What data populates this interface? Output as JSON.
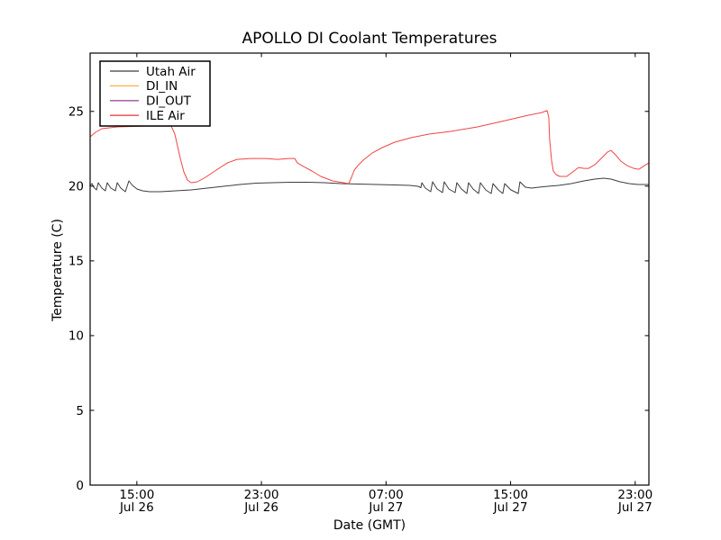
{
  "figure": {
    "background": "#ffffff",
    "spine_color": "#000000"
  },
  "chart_data": {
    "type": "line",
    "title": "APOLLO DI Coolant Temperatures",
    "xlabel": "Date (GMT)",
    "ylabel": "Temperature (C)",
    "grid": false,
    "legend_position": "upper left",
    "x_unit_note": "hours since Jul 26 12:00 GMT",
    "xlim": [
      0,
      35.88
    ],
    "ylim": [
      0,
      28.9
    ],
    "y_ticks": [
      0,
      5,
      10,
      15,
      20,
      25
    ],
    "x_ticks": [
      {
        "t": 3,
        "time": "15:00",
        "date": "Jul 26"
      },
      {
        "t": 11,
        "time": "23:00",
        "date": "Jul 26"
      },
      {
        "t": 19,
        "time": "07:00",
        "date": "Jul 27"
      },
      {
        "t": 27,
        "time": "15:00",
        "date": "Jul 27"
      },
      {
        "t": 35,
        "time": "23:00",
        "date": "Jul 27"
      }
    ],
    "series": [
      {
        "name": "Utah Air",
        "color": "#3c3c3c",
        "points": [
          [
            0,
            20.05
          ],
          [
            0.12,
            20.17
          ],
          [
            0.23,
            19.93
          ],
          [
            0.41,
            19.75
          ],
          [
            0.52,
            20.23
          ],
          [
            0.75,
            19.87
          ],
          [
            0.98,
            19.69
          ],
          [
            1.1,
            20.23
          ],
          [
            1.33,
            19.87
          ],
          [
            1.62,
            19.69
          ],
          [
            1.74,
            20.23
          ],
          [
            1.97,
            19.87
          ],
          [
            2.26,
            19.63
          ],
          [
            2.49,
            20.35
          ],
          [
            2.72,
            20.05
          ],
          [
            3.01,
            19.81
          ],
          [
            3.36,
            19.69
          ],
          [
            3.82,
            19.63
          ],
          [
            4.51,
            19.63
          ],
          [
            5.5,
            19.69
          ],
          [
            6.48,
            19.75
          ],
          [
            7.52,
            19.87
          ],
          [
            8.56,
            19.99
          ],
          [
            9.61,
            20.11
          ],
          [
            10.65,
            20.2
          ],
          [
            11.69,
            20.23
          ],
          [
            12.85,
            20.26
          ],
          [
            14.0,
            20.26
          ],
          [
            15.05,
            20.23
          ],
          [
            16.09,
            20.17
          ],
          [
            17.24,
            20.14
          ],
          [
            18.4,
            20.11
          ],
          [
            19.56,
            20.08
          ],
          [
            20.54,
            20.05
          ],
          [
            21.06,
            19.99
          ],
          [
            21.24,
            19.9
          ],
          [
            21.3,
            20.23
          ],
          [
            21.53,
            19.87
          ],
          [
            21.87,
            19.63
          ],
          [
            21.99,
            20.29
          ],
          [
            22.28,
            19.81
          ],
          [
            22.63,
            19.57
          ],
          [
            22.74,
            20.29
          ],
          [
            23.03,
            19.81
          ],
          [
            23.44,
            19.57
          ],
          [
            23.55,
            20.23
          ],
          [
            23.84,
            19.81
          ],
          [
            24.19,
            19.51
          ],
          [
            24.3,
            20.23
          ],
          [
            24.59,
            19.81
          ],
          [
            24.94,
            19.51
          ],
          [
            25.06,
            20.23
          ],
          [
            25.4,
            19.75
          ],
          [
            25.75,
            19.51
          ],
          [
            25.87,
            20.17
          ],
          [
            26.21,
            19.75
          ],
          [
            26.5,
            19.51
          ],
          [
            26.62,
            20.17
          ],
          [
            27.02,
            19.75
          ],
          [
            27.49,
            19.51
          ],
          [
            27.6,
            20.29
          ],
          [
            27.95,
            19.93
          ],
          [
            28.35,
            19.87
          ],
          [
            28.82,
            19.93
          ],
          [
            29.39,
            19.99
          ],
          [
            30.09,
            20.05
          ],
          [
            30.9,
            20.17
          ],
          [
            31.71,
            20.35
          ],
          [
            32.4,
            20.47
          ],
          [
            32.98,
            20.53
          ],
          [
            33.45,
            20.47
          ],
          [
            34.03,
            20.29
          ],
          [
            34.61,
            20.17
          ],
          [
            35.18,
            20.11
          ],
          [
            35.88,
            20.11
          ]
        ]
      },
      {
        "name": "DI_IN",
        "color": "#ffae45",
        "points": []
      },
      {
        "name": "DI_OUT",
        "color": "#9e4f9e",
        "points": []
      },
      {
        "name": "ILE Air",
        "color": "#f04545",
        "points": [
          [
            0,
            23.3
          ],
          [
            0.35,
            23.6
          ],
          [
            0.75,
            23.84
          ],
          [
            1.74,
            23.96
          ],
          [
            3.47,
            24.02
          ],
          [
            5.21,
            24.02
          ],
          [
            5.44,
            23.48
          ],
          [
            5.61,
            22.7
          ],
          [
            5.79,
            21.85
          ],
          [
            6.02,
            20.95
          ],
          [
            6.25,
            20.41
          ],
          [
            6.48,
            20.23
          ],
          [
            6.89,
            20.29
          ],
          [
            7.41,
            20.59
          ],
          [
            8.1,
            21.07
          ],
          [
            8.8,
            21.55
          ],
          [
            9.43,
            21.79
          ],
          [
            10.3,
            21.85
          ],
          [
            11.28,
            21.85
          ],
          [
            12.04,
            21.79
          ],
          [
            12.73,
            21.85
          ],
          [
            13.14,
            21.85
          ],
          [
            13.31,
            21.55
          ],
          [
            13.71,
            21.31
          ],
          [
            14.24,
            21.01
          ],
          [
            14.81,
            20.65
          ],
          [
            15.57,
            20.35
          ],
          [
            16.26,
            20.23
          ],
          [
            16.61,
            20.17
          ],
          [
            16.78,
            20.59
          ],
          [
            16.96,
            21.07
          ],
          [
            17.24,
            21.43
          ],
          [
            17.59,
            21.79
          ],
          [
            18.11,
            22.21
          ],
          [
            18.75,
            22.58
          ],
          [
            19.56,
            22.94
          ],
          [
            20.6,
            23.24
          ],
          [
            21.76,
            23.48
          ],
          [
            23.15,
            23.66
          ],
          [
            24.88,
            23.96
          ],
          [
            26.62,
            24.38
          ],
          [
            28.12,
            24.74
          ],
          [
            28.99,
            24.92
          ],
          [
            29.34,
            25.05
          ],
          [
            29.45,
            24.62
          ],
          [
            29.51,
            23.12
          ],
          [
            29.63,
            21.73
          ],
          [
            29.74,
            21.01
          ],
          [
            29.92,
            20.77
          ],
          [
            30.15,
            20.65
          ],
          [
            30.61,
            20.65
          ],
          [
            31.07,
            21.01
          ],
          [
            31.36,
            21.25
          ],
          [
            31.71,
            21.19
          ],
          [
            32.0,
            21.19
          ],
          [
            32.4,
            21.43
          ],
          [
            32.87,
            21.91
          ],
          [
            33.21,
            22.27
          ],
          [
            33.45,
            22.39
          ],
          [
            33.74,
            22.09
          ],
          [
            34.08,
            21.67
          ],
          [
            34.49,
            21.37
          ],
          [
            34.9,
            21.19
          ],
          [
            35.24,
            21.13
          ],
          [
            35.59,
            21.37
          ],
          [
            35.88,
            21.55
          ]
        ]
      }
    ]
  }
}
